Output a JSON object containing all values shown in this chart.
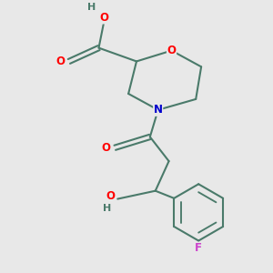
{
  "bg_color": "#e8e8e8",
  "bond_color": "#4a7a6a",
  "bond_lw": 1.5,
  "o_color": "#ff0000",
  "n_color": "#0000cc",
  "f_color": "#cc44cc",
  "font_size": 8.5,
  "figsize": [
    3.0,
    3.0
  ],
  "dpi": 100,
  "xlim": [
    0,
    10
  ],
  "ylim": [
    0,
    10
  ]
}
